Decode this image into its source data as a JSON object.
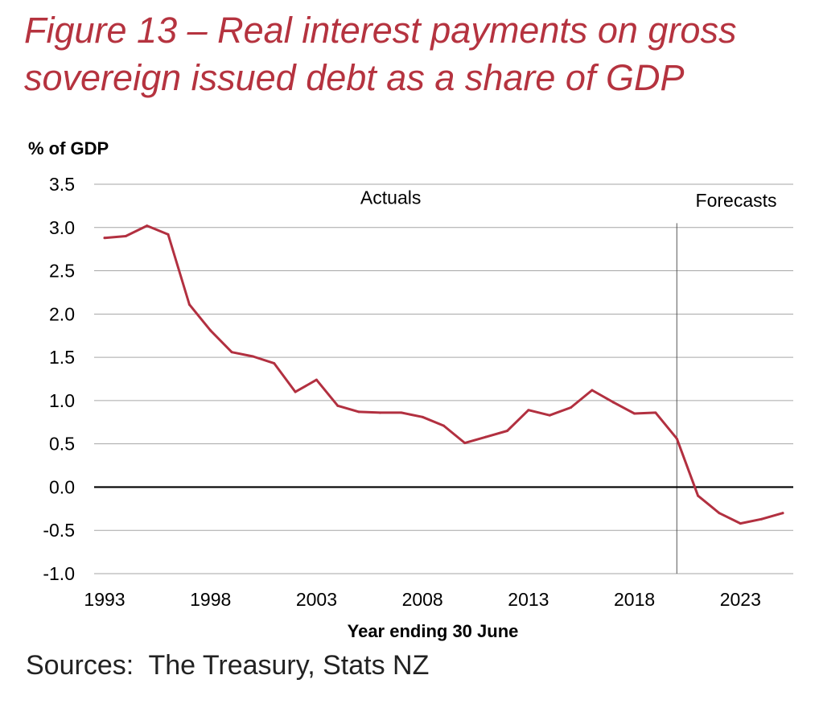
{
  "figure": {
    "title_line1": "Figure 13 – Real interest payments on gross",
    "title_line2": "sovereign issued debt as a share of GDP",
    "sources": "Sources:  The Treasury, Stats NZ"
  },
  "colors": {
    "title": "#b5333f",
    "series": "#b23040",
    "gridline": "#a6a6a6",
    "zero_line": "#000000",
    "text": "#000000"
  },
  "chart_data": {
    "type": "line",
    "title": "Figure 13 – Real interest payments on gross sovereign issued debt as a share of GDP",
    "ylabel": "% of GDP",
    "xlabel": "Year ending 30 June",
    "ylim": [
      -1.0,
      3.5
    ],
    "xlim": [
      1993,
      2025
    ],
    "y_ticks": [
      3.5,
      3.0,
      2.5,
      2.0,
      1.5,
      1.0,
      0.5,
      0.0,
      -0.5,
      -1.0
    ],
    "y_tick_labels": [
      "3.5",
      "3.0",
      "2.5",
      "2.0",
      "1.5",
      "1.0",
      "0.5",
      "0.0",
      "-0.5",
      "-1.0"
    ],
    "x_ticks": [
      1993,
      1998,
      2003,
      2008,
      2013,
      2018,
      2023
    ],
    "x_tick_labels": [
      "1993",
      "1998",
      "2003",
      "2008",
      "2013",
      "2018",
      "2023"
    ],
    "grid": true,
    "legend": "none",
    "divider_x": 2020,
    "annotations": [
      {
        "text": "Actuals",
        "x": 2006.5,
        "y": 3.27
      },
      {
        "text": "Forecasts",
        "x": 2022.8,
        "y": 3.24
      }
    ],
    "x": [
      1993,
      1994,
      1995,
      1996,
      1997,
      1998,
      1999,
      2000,
      2001,
      2002,
      2003,
      2004,
      2005,
      2006,
      2007,
      2008,
      2009,
      2010,
      2011,
      2012,
      2013,
      2014,
      2015,
      2016,
      2017,
      2018,
      2019,
      2020,
      2021,
      2022,
      2023,
      2024,
      2025
    ],
    "values": [
      2.88,
      2.9,
      3.02,
      2.92,
      2.11,
      1.81,
      1.56,
      1.51,
      1.43,
      1.1,
      1.24,
      0.94,
      0.87,
      0.86,
      0.86,
      0.81,
      0.71,
      0.51,
      0.58,
      0.65,
      0.89,
      0.83,
      0.92,
      1.12,
      0.98,
      0.85,
      0.86,
      0.56,
      -0.1,
      -0.3,
      -0.42,
      -0.37,
      -0.3
    ]
  }
}
